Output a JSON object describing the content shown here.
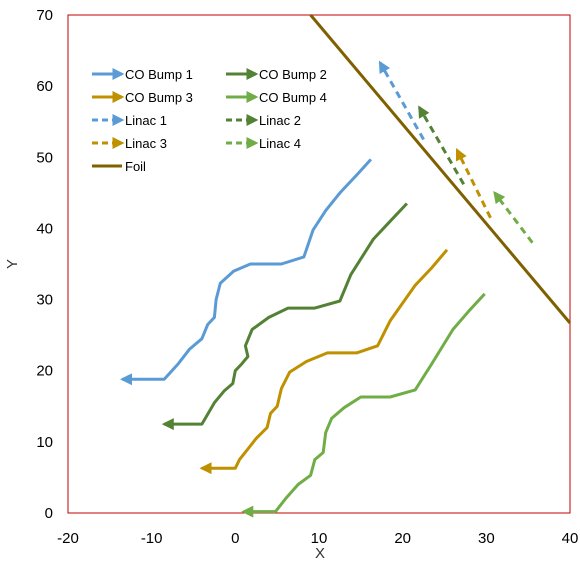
{
  "chart_data": {
    "type": "line",
    "xlabel": "X",
    "ylabel": "Y",
    "xlim": [
      -20,
      40
    ],
    "ylim": [
      0,
      70
    ],
    "x_ticks": [
      -20,
      -10,
      0,
      10,
      20,
      30,
      40
    ],
    "y_ticks": [
      0,
      10,
      20,
      30,
      40,
      50,
      60,
      70
    ],
    "x_tick_labels": [
      "-20",
      "-10",
      "0",
      "10",
      "20",
      "30",
      "40"
    ],
    "y_tick_labels": [
      "0",
      "10",
      "20",
      "30",
      "40",
      "50",
      "60",
      "70"
    ],
    "grid": false,
    "legend_position": "top-left",
    "series": [
      {
        "name": "CO Bump 1",
        "color": "#5b9bd5",
        "style": "solid",
        "arrow": true,
        "points": [
          [
            16.2,
            49.7
          ],
          [
            14.5,
            47.5
          ],
          [
            12.5,
            45
          ],
          [
            10.8,
            42.5
          ],
          [
            9.3,
            39.8
          ],
          [
            8.2,
            36
          ],
          [
            5.5,
            35
          ],
          [
            1.8,
            35
          ],
          [
            -0.2,
            34
          ],
          [
            -1.8,
            32.3
          ],
          [
            -2.3,
            30
          ],
          [
            -2.5,
            27.5
          ],
          [
            -3.3,
            26.5
          ],
          [
            -4,
            24.5
          ],
          [
            -5.5,
            23
          ],
          [
            -6.8,
            21
          ],
          [
            -8.5,
            18.8
          ],
          [
            -13.5,
            18.8
          ]
        ]
      },
      {
        "name": "CO Bump 2",
        "color": "#548235",
        "style": "solid",
        "arrow": true,
        "points": [
          [
            20.5,
            43.5
          ],
          [
            18.5,
            41
          ],
          [
            16.5,
            38.5
          ],
          [
            13.8,
            33.5
          ],
          [
            12.5,
            29.8
          ],
          [
            9.5,
            28.8
          ],
          [
            6.3,
            28.8
          ],
          [
            4,
            27.5
          ],
          [
            2,
            25.8
          ],
          [
            1.2,
            23.5
          ],
          [
            1.5,
            22
          ],
          [
            0.8,
            21
          ],
          [
            0,
            20
          ],
          [
            -0.3,
            18.2
          ],
          [
            -1.3,
            17.2
          ],
          [
            -2.5,
            15.5
          ],
          [
            -4,
            12.5
          ],
          [
            -8.5,
            12.5
          ]
        ]
      },
      {
        "name": "CO Bump 3",
        "color": "#bf9000",
        "style": "solid",
        "arrow": true,
        "points": [
          [
            25.3,
            37
          ],
          [
            23.5,
            34.5
          ],
          [
            21.5,
            32
          ],
          [
            18.5,
            27
          ],
          [
            17,
            23.5
          ],
          [
            14.5,
            22.5
          ],
          [
            11,
            22.5
          ],
          [
            8.5,
            21.3
          ],
          [
            6.5,
            19.8
          ],
          [
            5.5,
            17.5
          ],
          [
            5,
            15
          ],
          [
            4.2,
            14
          ],
          [
            3.8,
            12
          ],
          [
            2.5,
            10.5
          ],
          [
            1.5,
            9
          ],
          [
            0.5,
            7.5
          ],
          [
            0,
            6.3
          ],
          [
            -4,
            6.3
          ]
        ]
      },
      {
        "name": "CO Bump 4",
        "color": "#70ad47",
        "style": "solid",
        "arrow": true,
        "points": [
          [
            29.8,
            30.8
          ],
          [
            28,
            28.5
          ],
          [
            26,
            25.8
          ],
          [
            23.5,
            21
          ],
          [
            21.5,
            17.3
          ],
          [
            18.5,
            16.3
          ],
          [
            15,
            16.3
          ],
          [
            13,
            14.8
          ],
          [
            11.5,
            13.3
          ],
          [
            10.8,
            11.3
          ],
          [
            10.5,
            8.5
          ],
          [
            9.5,
            7.5
          ],
          [
            9,
            5.3
          ],
          [
            7.5,
            4
          ],
          [
            6,
            2
          ],
          [
            4.8,
            0.2
          ],
          [
            1,
            0.2
          ]
        ]
      },
      {
        "name": "Linac 1",
        "color": "#5b9bd5",
        "style": "dashed",
        "arrow": true,
        "points": [
          [
            22.5,
            52.5
          ],
          [
            17.3,
            63.3
          ]
        ]
      },
      {
        "name": "Linac 2",
        "color": "#548235",
        "style": "dashed",
        "arrow": true,
        "points": [
          [
            27.3,
            46.2
          ],
          [
            22,
            57
          ]
        ]
      },
      {
        "name": "Linac 3",
        "color": "#bf9000",
        "style": "dashed",
        "arrow": true,
        "points": [
          [
            30.5,
            41.5
          ],
          [
            26.5,
            51
          ]
        ]
      },
      {
        "name": "Linac 4",
        "color": "#70ad47",
        "style": "dashed",
        "arrow": true,
        "points": [
          [
            35.5,
            38
          ],
          [
            31,
            45
          ]
        ]
      },
      {
        "name": "Foil",
        "color": "#7f6000",
        "style": "solid",
        "arrow": false,
        "points": [
          [
            9,
            70
          ],
          [
            40,
            26.7
          ]
        ]
      }
    ]
  }
}
